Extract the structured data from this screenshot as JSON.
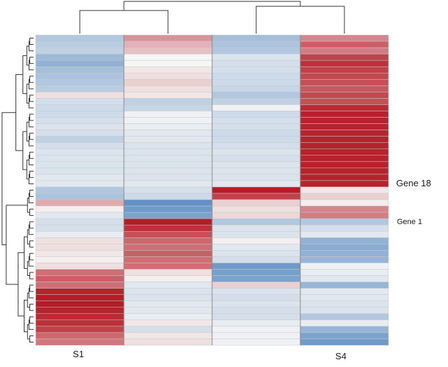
{
  "chart_data": {
    "type": "heatmap",
    "title": "",
    "xlabel": "",
    "ylabel": "",
    "columns": [
      "S1",
      "",
      "",
      "S4"
    ],
    "row_labels": [
      {
        "label": "Gene 18",
        "row": 23
      },
      {
        "label": "Gene 1",
        "row": 28
      }
    ],
    "color_scale": {
      "low": "#2b6cb3",
      "mid": "#f6f6f6",
      "high": "#b3141f"
    },
    "value_range": [
      -3,
      3
    ],
    "values": [
      [
        -1.0,
        1.3,
        -1.2,
        1.5
      ],
      [
        -0.9,
        0.9,
        -1.1,
        2.0
      ],
      [
        -0.8,
        0.7,
        -1.0,
        1.6
      ],
      [
        -1.3,
        0.0,
        -0.4,
        2.4
      ],
      [
        -1.5,
        0.0,
        -0.5,
        2.6
      ],
      [
        -1.2,
        0.2,
        -0.5,
        2.4
      ],
      [
        -1.1,
        0.3,
        -0.6,
        2.3
      ],
      [
        -1.0,
        0.5,
        -0.6,
        2.2
      ],
      [
        -0.9,
        0.3,
        -0.7,
        2.1
      ],
      [
        0.3,
        0.2,
        -1.0,
        2.3
      ],
      [
        -0.5,
        -0.8,
        -0.8,
        2.2
      ],
      [
        -0.6,
        -0.7,
        -0.1,
        2.7
      ],
      [
        -0.6,
        -0.1,
        -0.6,
        2.8
      ],
      [
        -0.5,
        -0.1,
        -0.5,
        2.8
      ],
      [
        -0.4,
        -0.2,
        -0.5,
        2.8
      ],
      [
        -0.5,
        -0.3,
        -0.6,
        2.8
      ],
      [
        -0.8,
        -0.3,
        -0.6,
        2.8
      ],
      [
        -0.5,
        -0.4,
        -0.5,
        2.8
      ],
      [
        -0.4,
        -0.4,
        -0.4,
        2.8
      ],
      [
        -0.4,
        -0.4,
        -0.5,
        2.8
      ],
      [
        -0.4,
        -0.4,
        -0.4,
        2.8
      ],
      [
        -0.4,
        -0.4,
        -0.4,
        2.8
      ],
      [
        -0.3,
        -0.4,
        -0.4,
        2.8
      ],
      [
        -0.3,
        -0.3,
        -0.3,
        2.8
      ],
      [
        -1.0,
        -0.5,
        2.9,
        0.2
      ],
      [
        -1.1,
        -0.6,
        2.4,
        0.5
      ],
      [
        1.0,
        -2.2,
        0.5,
        0.1
      ],
      [
        0.1,
        -2.0,
        0.3,
        1.5
      ],
      [
        -0.3,
        -1.8,
        0.4,
        1.6
      ],
      [
        -0.5,
        2.9,
        -1.0,
        -1.0
      ],
      [
        -0.5,
        2.6,
        -0.4,
        -0.5
      ],
      [
        -0.2,
        2.2,
        -0.4,
        -0.3
      ],
      [
        0.3,
        1.9,
        0.1,
        -1.5
      ],
      [
        0.3,
        1.8,
        -0.3,
        -1.6
      ],
      [
        0.2,
        2.0,
        -0.4,
        -1.5
      ],
      [
        0.1,
        1.8,
        -0.5,
        -1.4
      ],
      [
        0.3,
        1.8,
        -2.0,
        -0.1
      ],
      [
        1.8,
        0.3,
        -1.9,
        -0.2
      ],
      [
        2.0,
        0.1,
        -1.8,
        -0.3
      ],
      [
        1.8,
        -0.3,
        0.5,
        -1.4
      ],
      [
        2.8,
        -0.4,
        -0.4,
        -0.3
      ],
      [
        2.9,
        -0.4,
        -0.5,
        -0.3
      ],
      [
        2.9,
        -0.3,
        -0.4,
        -0.4
      ],
      [
        2.8,
        -0.3,
        -0.5,
        -0.4
      ],
      [
        2.7,
        -0.2,
        -0.5,
        -1.0
      ],
      [
        2.6,
        0.2,
        -0.2,
        -0.2
      ],
      [
        2.4,
        -0.5,
        -0.1,
        -1.4
      ],
      [
        1.9,
        0.2,
        -0.1,
        -1.8
      ],
      [
        1.7,
        0.3,
        -0.1,
        -2.0
      ]
    ]
  }
}
